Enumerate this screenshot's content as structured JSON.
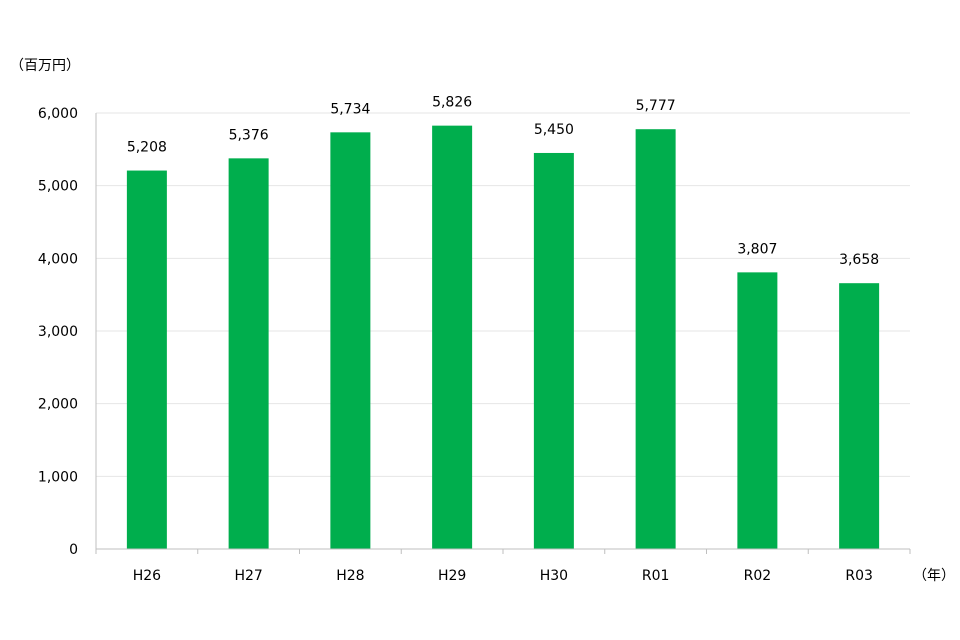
{
  "chart_data": {
    "type": "bar",
    "y_unit_label": "（百万円）",
    "x_unit_label": "（年）",
    "categories": [
      "H26",
      "H27",
      "H28",
      "H29",
      "H30",
      "R01",
      "R02",
      "R03"
    ],
    "values": [
      5208,
      5376,
      5734,
      5826,
      5450,
      5777,
      3807,
      3658
    ],
    "data_labels": [
      "5,208",
      "5,376",
      "5,734",
      "5,826",
      "5,450",
      "5,777",
      "3,807",
      "3,658"
    ],
    "ylim": [
      0,
      6000
    ],
    "y_ticks": [
      0,
      1000,
      2000,
      3000,
      4000,
      5000,
      6000
    ],
    "y_tick_labels": [
      "0",
      "1,000",
      "2,000",
      "3,000",
      "4,000",
      "5,000",
      "6,000"
    ],
    "grid": true,
    "bar_color": "#00AE4D",
    "grid_color": "#e6e6e6",
    "axis_color": "#bfbfbf"
  }
}
